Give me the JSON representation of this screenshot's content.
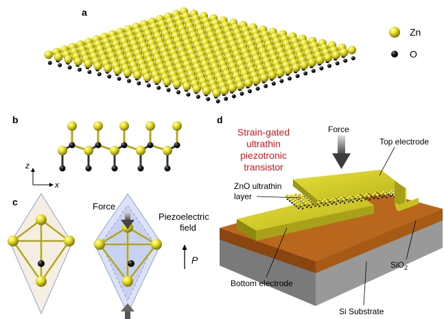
{
  "panels": {
    "a": "a",
    "b": "b",
    "c": "c",
    "d": "d"
  },
  "legend": {
    "zn": "Zn",
    "o": "O"
  },
  "axes": {
    "z": "z",
    "x": "x"
  },
  "panel_c": {
    "force": "Force",
    "piezo_line1": "Piezoelectric",
    "piezo_line2": "field",
    "p": "P"
  },
  "panel_d": {
    "title_line1": "Strain-gated",
    "title_line2": "ultrathin",
    "title_line3": "piezotronic",
    "title_line4": "transistor",
    "force": "Force",
    "top_electrode": "Top electrode",
    "zno_line1": "ZnO ultrathin",
    "zno_line2": "layer",
    "bottom_electrode": "Bottom electrode",
    "sio2": "SiO",
    "sio2_sub": "2",
    "si_substrate": "Si Substrate"
  },
  "colors": {
    "zn": "#e8e021",
    "o": "#111111",
    "electrode": "#cfc825",
    "oxide": "#b05a10",
    "substrate": "#8a8a8a",
    "red_title": "#e4141b"
  }
}
